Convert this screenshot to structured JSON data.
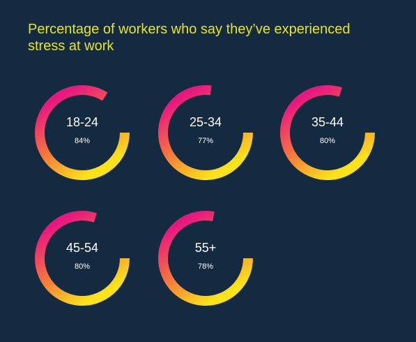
{
  "chart_data": {
    "type": "donut",
    "title": "Percentage of workers who say they’ve experienced stress at work",
    "categories": [
      "18-24",
      "25-34",
      "35-44",
      "45-54",
      "55+"
    ],
    "values": [
      84,
      77,
      80,
      80,
      78
    ],
    "value_labels": [
      "84%",
      "77%",
      "80%",
      "80%",
      "78%"
    ],
    "gradient": [
      "#e8177f",
      "#f5733f",
      "#fde418"
    ]
  }
}
